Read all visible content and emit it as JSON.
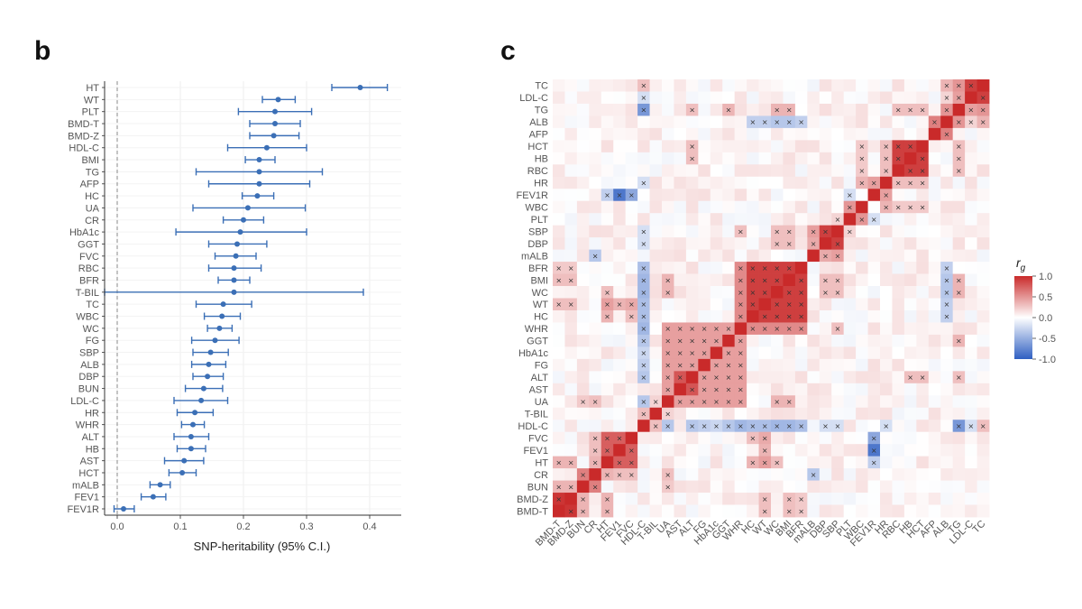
{
  "panels": {
    "b": "b",
    "c": "c"
  },
  "chart_data": [
    {
      "type": "scatter",
      "subtype": "forest",
      "xlabel": "SNP-heritability (95% C.I.)",
      "xlim": [
        -0.02,
        0.45
      ],
      "xticks": [
        0.0,
        0.1,
        0.2,
        0.3,
        0.4
      ],
      "xtick_labels": [
        "0.0",
        "0.1",
        "0.2",
        "0.3",
        "0.4"
      ],
      "reference_line": 0,
      "color": "#3b6fb6",
      "traits": [
        {
          "name": "HT",
          "est": 0.385,
          "lo": 0.34,
          "hi": 0.428
        },
        {
          "name": "WT",
          "est": 0.255,
          "lo": 0.23,
          "hi": 0.282
        },
        {
          "name": "PLT",
          "est": 0.25,
          "lo": 0.192,
          "hi": 0.308
        },
        {
          "name": "BMD-T",
          "est": 0.25,
          "lo": 0.21,
          "hi": 0.29
        },
        {
          "name": "BMD-Z",
          "est": 0.248,
          "lo": 0.21,
          "hi": 0.288
        },
        {
          "name": "HDL-C",
          "est": 0.237,
          "lo": 0.175,
          "hi": 0.3
        },
        {
          "name": "BMI",
          "est": 0.225,
          "lo": 0.203,
          "hi": 0.25
        },
        {
          "name": "TG",
          "est": 0.225,
          "lo": 0.125,
          "hi": 0.325
        },
        {
          "name": "AFP",
          "est": 0.225,
          "lo": 0.145,
          "hi": 0.305
        },
        {
          "name": "HC",
          "est": 0.222,
          "lo": 0.198,
          "hi": 0.248
        },
        {
          "name": "UA",
          "est": 0.207,
          "lo": 0.12,
          "hi": 0.298
        },
        {
          "name": "CR",
          "est": 0.2,
          "lo": 0.168,
          "hi": 0.232
        },
        {
          "name": "HbA1c",
          "est": 0.195,
          "lo": 0.093,
          "hi": 0.3
        },
        {
          "name": "GGT",
          "est": 0.19,
          "lo": 0.145,
          "hi": 0.237
        },
        {
          "name": "FVC",
          "est": 0.188,
          "lo": 0.155,
          "hi": 0.22
        },
        {
          "name": "RBC",
          "est": 0.185,
          "lo": 0.145,
          "hi": 0.228
        },
        {
          "name": "BFR",
          "est": 0.185,
          "lo": 0.16,
          "hi": 0.21
        },
        {
          "name": "T-BIL",
          "est": 0.185,
          "lo": -0.02,
          "hi": 0.39
        },
        {
          "name": "TC",
          "est": 0.168,
          "lo": 0.125,
          "hi": 0.213
        },
        {
          "name": "WBC",
          "est": 0.166,
          "lo": 0.138,
          "hi": 0.195
        },
        {
          "name": "WC",
          "est": 0.162,
          "lo": 0.143,
          "hi": 0.182
        },
        {
          "name": "FG",
          "est": 0.155,
          "lo": 0.118,
          "hi": 0.193
        },
        {
          "name": "SBP",
          "est": 0.148,
          "lo": 0.12,
          "hi": 0.176
        },
        {
          "name": "ALB",
          "est": 0.145,
          "lo": 0.118,
          "hi": 0.172
        },
        {
          "name": "DBP",
          "est": 0.143,
          "lo": 0.12,
          "hi": 0.168
        },
        {
          "name": "BUN",
          "est": 0.137,
          "lo": 0.108,
          "hi": 0.167
        },
        {
          "name": "LDL-C",
          "est": 0.133,
          "lo": 0.09,
          "hi": 0.175
        },
        {
          "name": "HR",
          "est": 0.123,
          "lo": 0.095,
          "hi": 0.152
        },
        {
          "name": "WHR",
          "est": 0.12,
          "lo": 0.102,
          "hi": 0.138
        },
        {
          "name": "ALT",
          "est": 0.117,
          "lo": 0.09,
          "hi": 0.145
        },
        {
          "name": "HB",
          "est": 0.117,
          "lo": 0.095,
          "hi": 0.14
        },
        {
          "name": "AST",
          "est": 0.106,
          "lo": 0.075,
          "hi": 0.137
        },
        {
          "name": "HCT",
          "est": 0.103,
          "lo": 0.082,
          "hi": 0.125
        },
        {
          "name": "mALB",
          "est": 0.068,
          "lo": 0.052,
          "hi": 0.084
        },
        {
          "name": "FEV1",
          "est": 0.057,
          "lo": 0.038,
          "hi": 0.077
        },
        {
          "name": "FEV1R",
          "est": 0.01,
          "lo": -0.005,
          "hi": 0.027
        }
      ]
    },
    {
      "type": "heatmap",
      "row_labels": [
        "TC",
        "LDL-C",
        "TG",
        "ALB",
        "AFP",
        "HCT",
        "HB",
        "RBC",
        "HR",
        "FEV1R",
        "WBC",
        "PLT",
        "SBP",
        "DBP",
        "mALB",
        "BFR",
        "BMI",
        "WC",
        "WT",
        "HC",
        "WHR",
        "GGT",
        "HbA1c",
        "FG",
        "ALT",
        "AST",
        "UA",
        "T-BIL",
        "HDL-C",
        "FVC",
        "FEV1",
        "HT",
        "CR",
        "BUN",
        "BMD-Z",
        "BMD-T"
      ],
      "col_labels": [
        "BMD-T",
        "BMD-Z",
        "BUN",
        "CR",
        "HT",
        "FEV1",
        "FVC",
        "HDL-C",
        "T-BIL",
        "UA",
        "AST",
        "ALT",
        "FG",
        "HbA1c",
        "GGT",
        "WHR",
        "HC",
        "WT",
        "WC",
        "BMI",
        "BFR",
        "mALB",
        "DBP",
        "SBP",
        "PLT",
        "WBC",
        "FEV1R",
        "HR",
        "RBC",
        "HB",
        "HCT",
        "AFP",
        "ALB",
        "TG",
        "LDL-C",
        "TC"
      ],
      "legend": {
        "title": "r",
        "title_subscript": "g",
        "ticks": [
          1.0,
          0.5,
          0.0,
          -0.5,
          -1.0
        ],
        "tick_labels": [
          "1.0",
          "0.5",
          "0.0",
          "-0.5",
          "-1.0"
        ],
        "colors": {
          "high": "#c92a2a",
          "mid": "#ffffff",
          "low": "#2f5fc2"
        }
      },
      "significance_marker": "×",
      "correlation_blocks": [
        {
          "traits": [
            "BFR",
            "BMI",
            "WC",
            "WT",
            "HC"
          ],
          "value": 0.9
        },
        {
          "traits": [
            "BFR",
            "BMI",
            "WC",
            "WT",
            "HC",
            "WHR"
          ],
          "value": 0.55
        },
        {
          "traits": [
            "WHR",
            "GGT",
            "HbA1c",
            "FG",
            "ALT",
            "AST",
            "UA"
          ],
          "value": 0.45
        },
        {
          "traits": [
            "ALT",
            "AST"
          ],
          "value": 0.8
        },
        {
          "traits": [
            "HCT",
            "HB",
            "RBC"
          ],
          "value": 0.9
        },
        {
          "traits": [
            "TC",
            "LDL-C"
          ],
          "value": 0.9
        },
        {
          "traits": [
            "SBP",
            "DBP"
          ],
          "value": 0.9
        },
        {
          "traits": [
            "FVC",
            "FEV1",
            "HT"
          ],
          "value": 0.75
        },
        {
          "traits": [
            "BMD-Z",
            "BMD-T"
          ],
          "value": 0.95
        },
        {
          "traits": [
            "CR",
            "BUN"
          ],
          "value": 0.6
        }
      ],
      "pair_values": [
        {
          "a": "FEV1R",
          "b": "FEV1",
          "value": -0.85
        },
        {
          "a": "FEV1R",
          "b": "FVC",
          "value": -0.55
        },
        {
          "a": "FEV1R",
          "b": "HT",
          "value": -0.3
        },
        {
          "a": "HDL-C",
          "b": "TG",
          "value": -0.65
        },
        {
          "a": "HDL-C",
          "b": "BMI",
          "value": -0.45
        },
        {
          "a": "HDL-C",
          "b": "WC",
          "value": -0.45
        },
        {
          "a": "HDL-C",
          "b": "WT",
          "value": -0.4
        },
        {
          "a": "HDL-C",
          "b": "HC",
          "value": -0.4
        },
        {
          "a": "HDL-C",
          "b": "BFR",
          "value": -0.4
        },
        {
          "a": "HDL-C",
          "b": "WHR",
          "value": -0.45
        },
        {
          "a": "HDL-C",
          "b": "GGT",
          "value": -0.35
        },
        {
          "a": "HDL-C",
          "b": "FG",
          "value": -0.3
        },
        {
          "a": "HDL-C",
          "b": "HbA1c",
          "value": -0.25
        },
        {
          "a": "HDL-C",
          "b": "ALT",
          "value": -0.35
        },
        {
          "a": "HDL-C",
          "b": "UA",
          "value": -0.35
        },
        {
          "a": "HDL-C",
          "b": "SBP",
          "value": -0.2
        },
        {
          "a": "HDL-C",
          "b": "DBP",
          "value": -0.2
        },
        {
          "a": "HDL-C",
          "b": "HR",
          "value": -0.2
        },
        {
          "a": "HDL-C",
          "b": "LDL-C",
          "value": -0.2
        },
        {
          "a": "HDL-C",
          "b": "TC",
          "value": 0.3
        },
        {
          "a": "ALB",
          "b": "BMI",
          "value": -0.35
        },
        {
          "a": "ALB",
          "b": "WC",
          "value": -0.35
        },
        {
          "a": "ALB",
          "b": "WT",
          "value": -0.3
        },
        {
          "a": "ALB",
          "b": "HC",
          "value": -0.3
        },
        {
          "a": "ALB",
          "b": "BFR",
          "value": -0.3
        },
        {
          "a": "ALB",
          "b": "TG",
          "value": 0.5
        },
        {
          "a": "ALB",
          "b": "TC",
          "value": 0.35
        },
        {
          "a": "ALB",
          "b": "LDL-C",
          "value": 0.2
        },
        {
          "a": "AFP",
          "b": "ALB",
          "value": 0.6
        },
        {
          "a": "TG",
          "b": "TC",
          "value": 0.5
        },
        {
          "a": "TG",
          "b": "LDL-C",
          "value": 0.45
        },
        {
          "a": "TG",
          "b": "BMI",
          "value": 0.35
        },
        {
          "a": "TG",
          "b": "WC",
          "value": 0.35
        },
        {
          "a": "TG",
          "b": "GGT",
          "value": 0.35
        },
        {
          "a": "TG",
          "b": "ALT",
          "value": 0.3
        },
        {
          "a": "HR",
          "b": "HCT",
          "value": 0.3
        },
        {
          "a": "HR",
          "b": "HB",
          "value": 0.3
        },
        {
          "a": "HR",
          "b": "RBC",
          "value": 0.3
        },
        {
          "a": "HR",
          "b": "WBC",
          "value": 0.35
        },
        {
          "a": "HR",
          "b": "FEV1R",
          "value": 0.45
        },
        {
          "a": "WBC",
          "b": "PLT",
          "value": 0.5
        },
        {
          "a": "WBC",
          "b": "HCT",
          "value": 0.25
        },
        {
          "a": "WBC",
          "b": "HB",
          "value": 0.25
        },
        {
          "a": "WBC",
          "b": "RBC",
          "value": 0.25
        },
        {
          "a": "PLT",
          "b": "FEV1R",
          "value": -0.2
        },
        {
          "a": "PLT",
          "b": "SBP",
          "value": 0.2
        },
        {
          "a": "mALB",
          "b": "SBP",
          "value": 0.45
        },
        {
          "a": "mALB",
          "b": "DBP",
          "value": 0.4
        },
        {
          "a": "mALB",
          "b": "CR",
          "value": -0.35
        },
        {
          "a": "SBP",
          "b": "BMI",
          "value": 0.3
        },
        {
          "a": "SBP",
          "b": "WC",
          "value": 0.3
        },
        {
          "a": "DBP",
          "b": "BMI",
          "value": 0.3
        },
        {
          "a": "DBP",
          "b": "WC",
          "value": 0.3
        },
        {
          "a": "SBP",
          "b": "WHR",
          "value": 0.3
        },
        {
          "a": "UA",
          "b": "BMI",
          "value": 0.35
        },
        {
          "a": "UA",
          "b": "WC",
          "value": 0.35
        },
        {
          "a": "UA",
          "b": "CR",
          "value": 0.3
        },
        {
          "a": "UA",
          "b": "BUN",
          "value": 0.25
        },
        {
          "a": "HT",
          "b": "WT",
          "value": 0.45
        },
        {
          "a": "HT",
          "b": "HC",
          "value": 0.35
        },
        {
          "a": "HT",
          "b": "WC",
          "value": 0.3
        },
        {
          "a": "FVC",
          "b": "WT",
          "value": 0.4
        },
        {
          "a": "FVC",
          "b": "HC",
          "value": 0.3
        },
        {
          "a": "FEV1",
          "b": "WT",
          "value": 0.35
        },
        {
          "a": "HT",
          "b": "BMD-Z",
          "value": 0.35
        },
        {
          "a": "HT",
          "b": "BMD-T",
          "value": 0.35
        },
        {
          "a": "BMD-T",
          "b": "WT",
          "value": 0.3
        },
        {
          "a": "BMD-T",
          "b": "BMI",
          "value": 0.3
        },
        {
          "a": "BMD-Z",
          "b": "WT",
          "value": 0.3
        },
        {
          "a": "BMD-Z",
          "b": "BMI",
          "value": 0.3
        },
        {
          "a": "BMD-T",
          "b": "BFR",
          "value": 0.25
        },
        {
          "a": "BMD-Z",
          "b": "BFR",
          "value": 0.25
        },
        {
          "a": "CR",
          "b": "HT",
          "value": 0.35
        },
        {
          "a": "CR",
          "b": "FEV1",
          "value": 0.3
        },
        {
          "a": "CR",
          "b": "FVC",
          "value": 0.3
        },
        {
          "a": "BUN",
          "b": "BMD-T",
          "value": 0.35
        },
        {
          "a": "BUN",
          "b": "BMD-Z",
          "value": 0.35
        },
        {
          "a": "T-BIL",
          "b": "UA",
          "value": 0.2
        },
        {
          "a": "T-BIL",
          "b": "HDL-C",
          "value": 0.3
        },
        {
          "a": "HCT",
          "b": "TG",
          "value": 0.3
        },
        {
          "a": "HB",
          "b": "TG",
          "value": 0.3
        },
        {
          "a": "RBC",
          "b": "TG",
          "value": 0.3
        },
        {
          "a": "HCT",
          "b": "ALT",
          "value": 0.3
        },
        {
          "a": "HB",
          "b": "ALT",
          "value": 0.3
        }
      ]
    }
  ]
}
